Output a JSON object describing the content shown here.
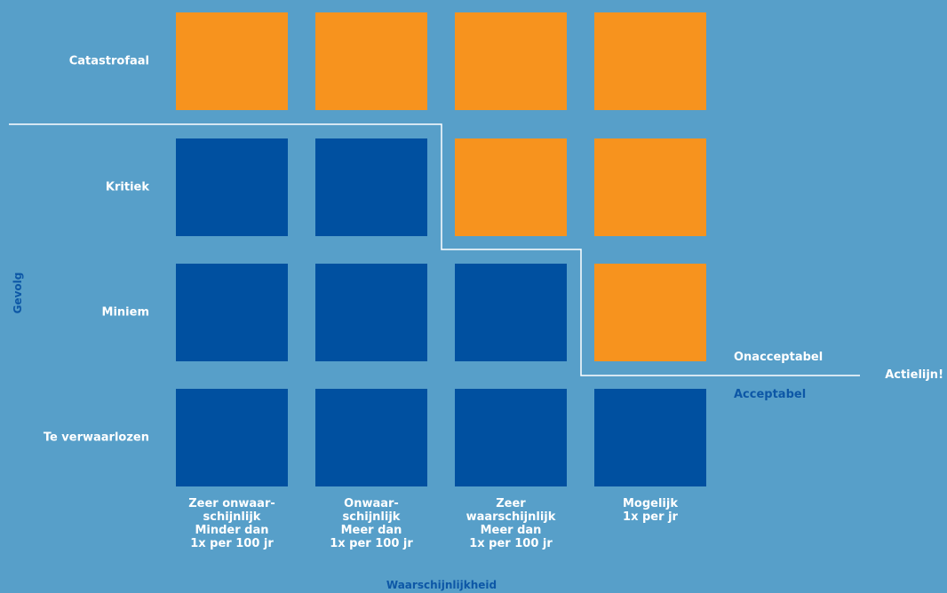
{
  "colors": {
    "background": "#579fc9",
    "acceptable": "#0050a0",
    "unacceptable": "#f7931e",
    "line": "#ffffff"
  },
  "y_axis_label": "Gevolg",
  "x_axis_label": "Waarschijnlijkheid",
  "rows": [
    "Catastrofaal",
    "Kritiek",
    "Miniem",
    "Te verwaarlozen"
  ],
  "columns": [
    "Zeer onwaar-\nschijnlijk\nMinder dan\n1x per 100 jr",
    "Onwaar-\nschijnlijk\nMeer dan\n1x per 100 jr",
    "Zeer\nwaarschijnlijk\nMeer dan\n1x per 100 jr",
    "Mogelijk\n1x per jr"
  ],
  "matrix": [
    [
      "unacceptable",
      "unacceptable",
      "unacceptable",
      "unacceptable"
    ],
    [
      "acceptable",
      "acceptable",
      "unacceptable",
      "unacceptable"
    ],
    [
      "acceptable",
      "acceptable",
      "acceptable",
      "unacceptable"
    ],
    [
      "acceptable",
      "acceptable",
      "acceptable",
      "acceptable"
    ]
  ],
  "zones": {
    "unacceptable_label": "Onacceptabel",
    "acceptable_label": "Acceptabel",
    "action_line_label": "Actielijn!"
  }
}
